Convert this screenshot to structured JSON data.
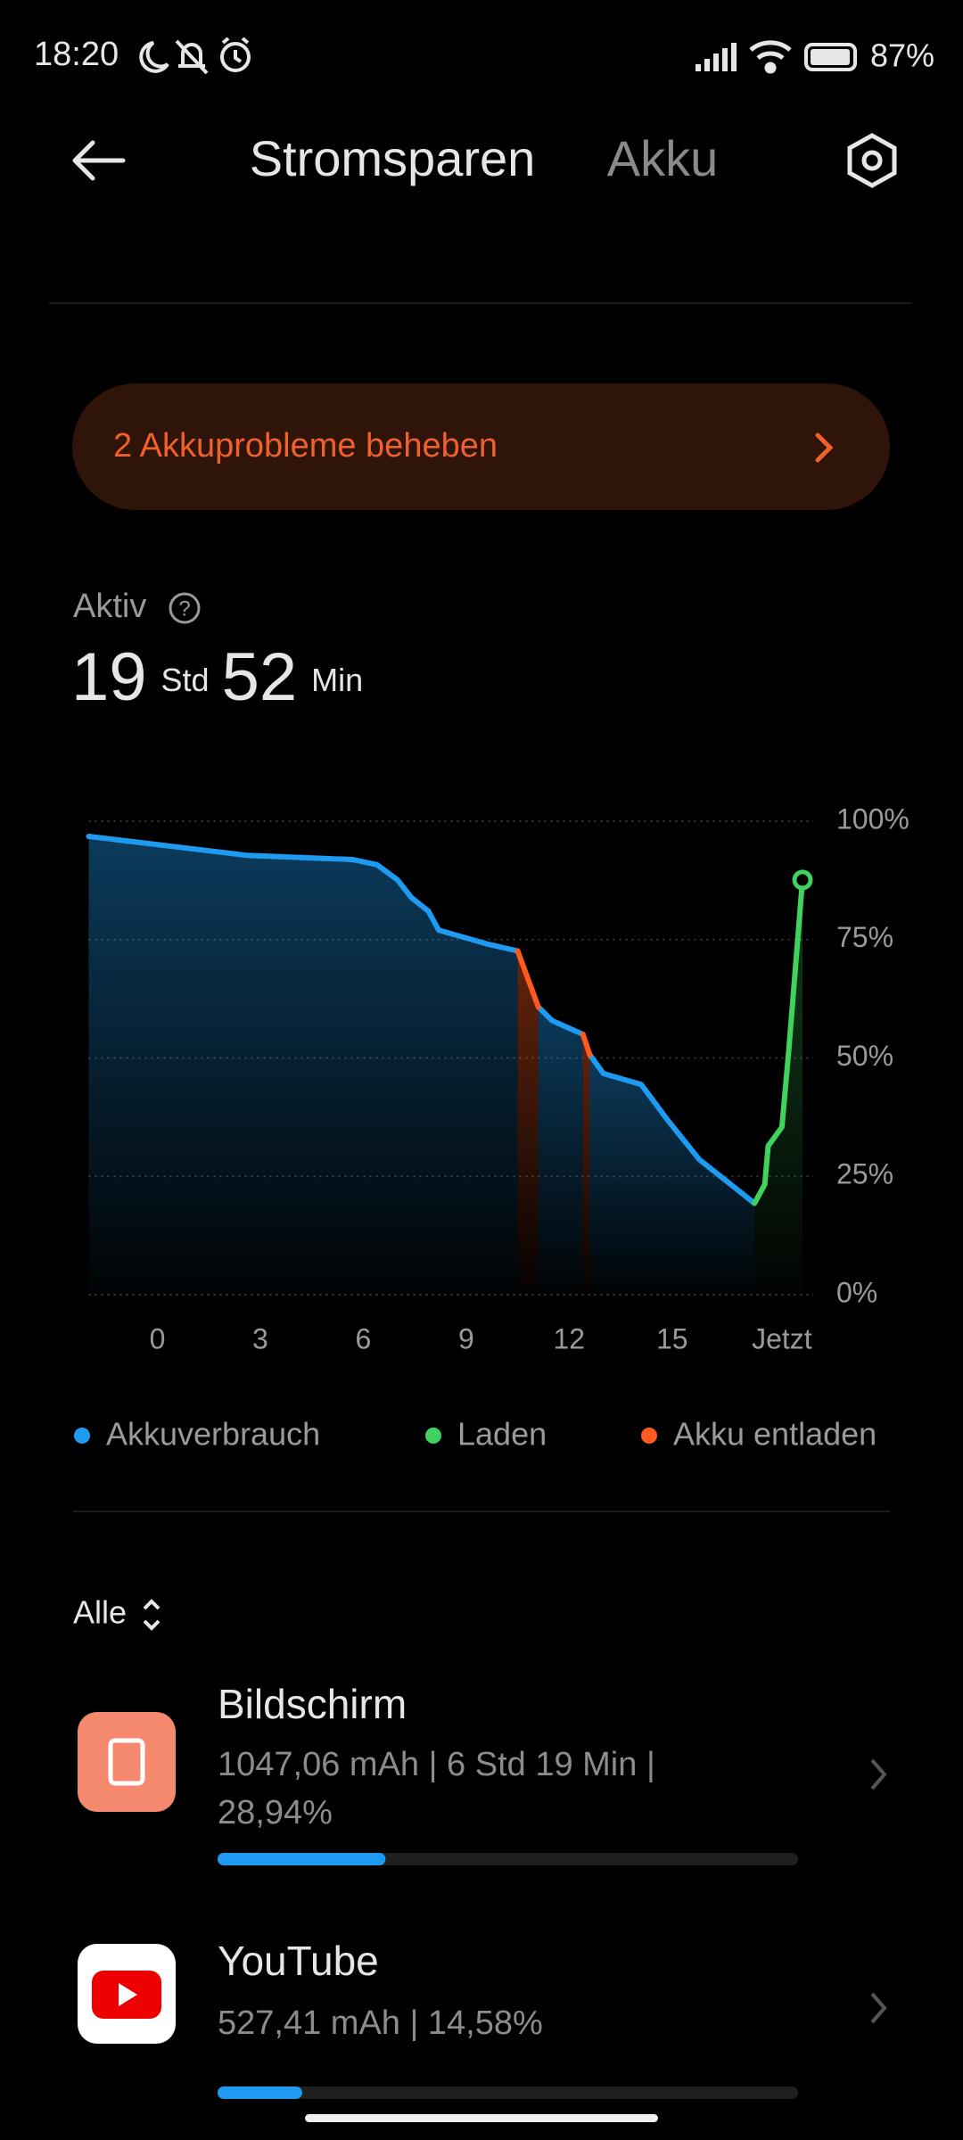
{
  "status_bar": {
    "time": "18:20",
    "battery": "87%"
  },
  "header": {
    "tabs": [
      "Stromsparen",
      "Akku"
    ]
  },
  "alert": {
    "text": "2 Akkuprobleme beheben"
  },
  "active": {
    "label": "Aktiv",
    "hours": "19",
    "hours_unit": "Std",
    "minutes": "52",
    "minutes_unit": "Min"
  },
  "chart_data": {
    "type": "line",
    "xlim": [
      -2,
      18.8
    ],
    "ylim": [
      0,
      100
    ],
    "xticks": [
      0,
      3,
      6,
      9,
      12,
      15,
      {
        "value": 18.2,
        "label": "Jetzt"
      }
    ],
    "yticks": [
      {
        "value": 0,
        "label": "0%"
      },
      {
        "value": 25,
        "label": "25%"
      },
      {
        "value": 50,
        "label": "50%"
      },
      {
        "value": 75,
        "label": "75%"
      },
      {
        "value": 100,
        "label": "100%"
      }
    ],
    "grid": true,
    "series": [
      {
        "name": "Akkuverbrauch",
        "color": "#1e9bf0",
        "x": [
          -2,
          2.6,
          5.7,
          6.4,
          7.0,
          7.4,
          7.9,
          8.2,
          9.6,
          10.5,
          null,
          11.1,
          11.5,
          12.4,
          null,
          12.6,
          13.0,
          14.1,
          14.9,
          15.8,
          16.9,
          17.4
        ],
        "values": [
          96.8,
          92.8,
          91.9,
          90.8,
          87.6,
          83.9,
          81.0,
          77.0,
          74.1,
          72.6,
          null,
          60.8,
          57.9,
          55.0,
          null,
          50.7,
          46.7,
          44.4,
          36.6,
          28.5,
          22.2,
          19.3
        ]
      },
      {
        "name": "Laden",
        "color": "#3fd25c",
        "x": [
          17.4,
          17.7,
          17.8,
          18.2,
          18.4,
          18.8
        ],
        "values": [
          19.3,
          23.3,
          31.4,
          35.4,
          51.6,
          87.6
        ]
      },
      {
        "name": "Akku entladen",
        "color": "#ff5a1f",
        "x": [
          10.5,
          11.1,
          null,
          12.4,
          12.6
        ],
        "values": [
          72.6,
          60.8,
          null,
          55.0,
          50.7
        ]
      }
    ]
  },
  "filter": "Alle",
  "apps": [
    {
      "name": "Bildschirm",
      "details": "1047,06 mAh | 6 Std 19 Min | 28,94%",
      "share": 28.94
    },
    {
      "name": "YouTube",
      "details": "527,41 mAh | 14,58%",
      "share": 14.58
    }
  ]
}
